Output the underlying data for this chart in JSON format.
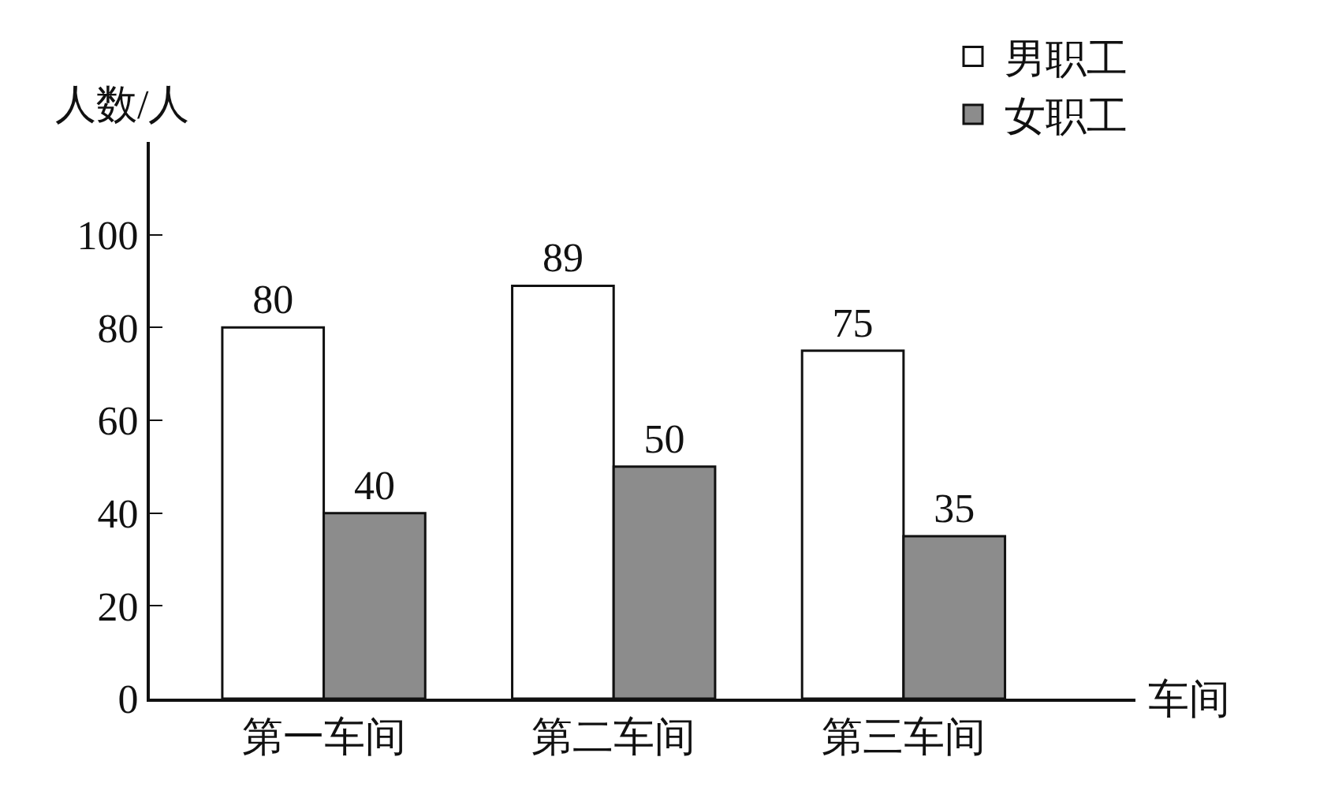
{
  "chart_data": {
    "type": "bar",
    "xlabel": "车间",
    "ylabel": "人数/人",
    "categories": [
      "第一车间",
      "第二车间",
      "第三车间"
    ],
    "series": [
      {
        "name": "男职工",
        "color": "#ffffff",
        "values": [
          80,
          89,
          75
        ]
      },
      {
        "name": "女职工",
        "color": "#8c8c8c",
        "values": [
          40,
          50,
          35
        ]
      }
    ],
    "ylim": [
      0,
      120
    ],
    "yticks": [
      0,
      20,
      40,
      60,
      80,
      100
    ],
    "grid": false,
    "legend": "top right",
    "data_labels": true
  }
}
